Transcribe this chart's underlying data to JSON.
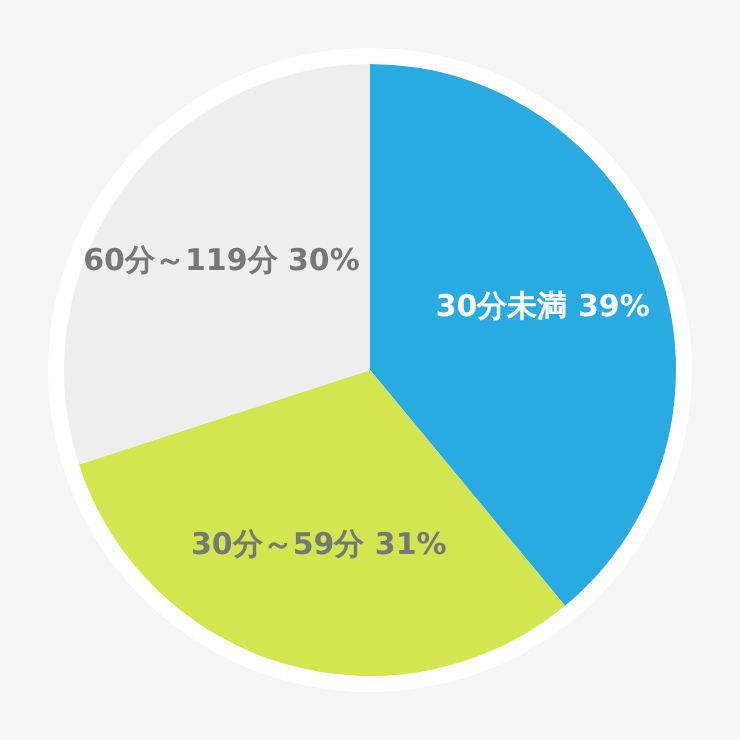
{
  "chart_data": {
    "type": "pie",
    "categories": [
      "30分未満",
      "30分～59分",
      "60分～119分"
    ],
    "values": [
      39,
      31,
      30
    ],
    "colors": [
      "#29abe2",
      "#d4e64f",
      "#eeeeee"
    ],
    "value_labels": [
      "39%",
      "31%",
      "30%"
    ],
    "legend": false
  }
}
